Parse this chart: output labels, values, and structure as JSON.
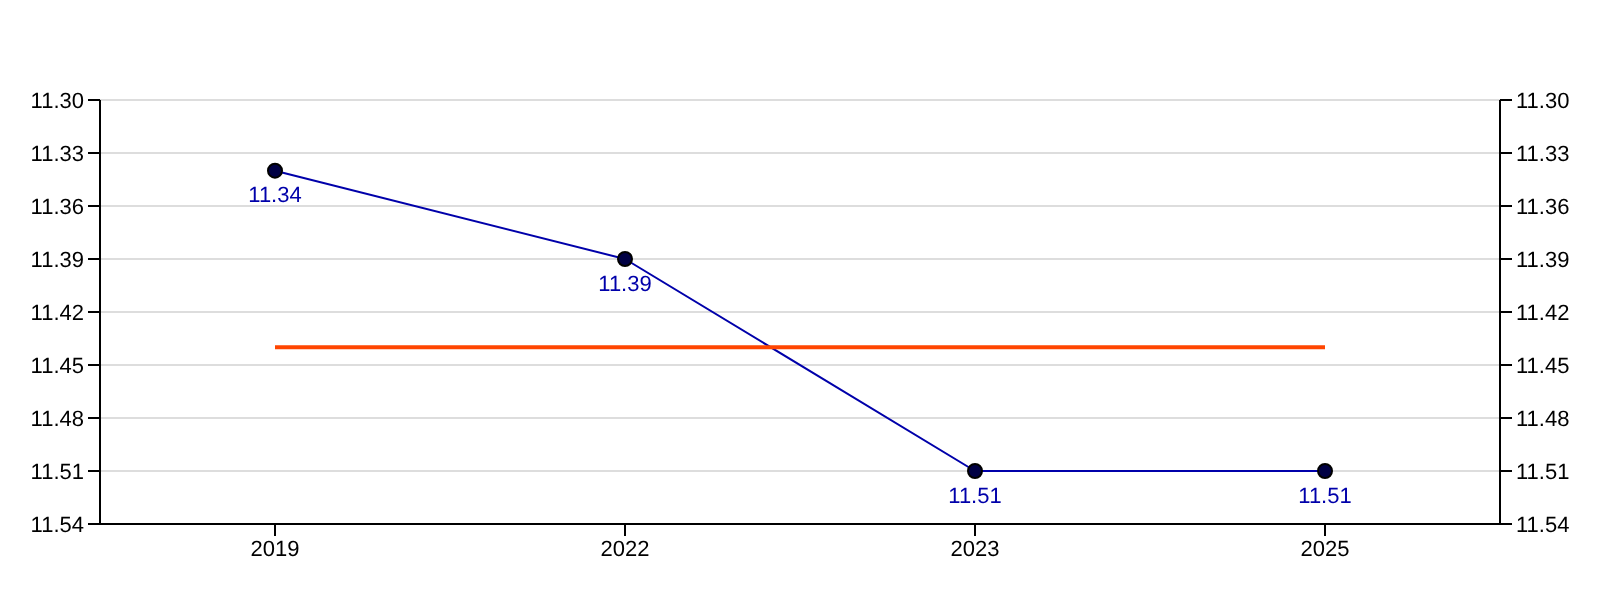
{
  "chart_data": {
    "type": "line",
    "categories": [
      "2019",
      "2022",
      "2023",
      "2025"
    ],
    "series": [
      {
        "color": "#0000aa",
        "values": [
          11.34,
          11.39,
          11.51,
          11.51
        ],
        "data_labels": true,
        "marker": "circle"
      },
      {
        "color": "#ff4500",
        "values": [
          11.44,
          11.44,
          11.44,
          11.44
        ],
        "marker": "none"
      }
    ],
    "ylim": [
      11.54,
      11.3
    ],
    "yticks": [
      {
        "value": 11.3,
        "label": "11.30"
      },
      11.33,
      11.36,
      11.39,
      11.42,
      11.45,
      11.48,
      11.51,
      11.54
    ],
    "y2lim": [
      11.54,
      11.3
    ],
    "y2ticks": [
      {
        "value": 11.3,
        "label": "11.30"
      },
      11.33,
      11.36,
      11.39,
      11.42,
      11.45,
      11.48,
      11.51,
      11.54
    ],
    "grid": "y",
    "line_style": "solid"
  }
}
